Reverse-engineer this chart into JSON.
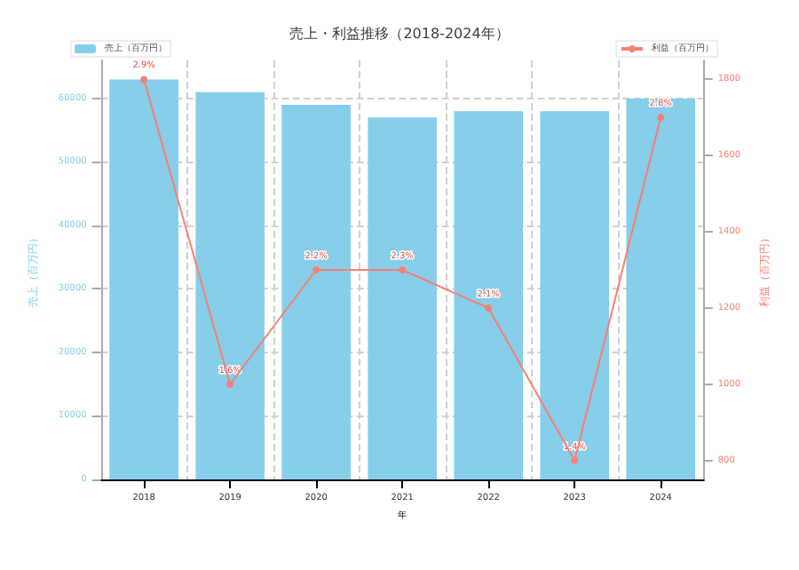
{
  "chart_data": {
    "type": "bar",
    "title": "売上・利益推移（2018-2024年）",
    "xlabel": "年",
    "ylabel": "売上（百万円）",
    "y2label": "利益（百万円）",
    "categories": [
      "2018",
      "2019",
      "2020",
      "2021",
      "2022",
      "2023",
      "2024"
    ],
    "series": [
      {
        "name": "売上（百万円）",
        "type": "bar",
        "color": "#87ceeb",
        "values": [
          63000,
          61000,
          59000,
          57000,
          58000,
          58000,
          60000
        ]
      },
      {
        "name": "利益（百万円）",
        "type": "line",
        "axis": "y2",
        "color": "#fa8072",
        "marker": "circle",
        "values": [
          1800,
          1000,
          1300,
          1300,
          1200,
          800,
          1700
        ]
      }
    ],
    "annotations": [
      "2.9%",
      "1.6%",
      "2.2%",
      "2.3%",
      "2.1%",
      "1.4%",
      "2.8%"
    ],
    "ylim": [
      0,
      66000
    ],
    "yticks": [
      0,
      10000,
      20000,
      30000,
      40000,
      50000,
      60000
    ],
    "y2lim": [
      750,
      1850
    ],
    "y2ticks": [
      800,
      1000,
      1200,
      1400,
      1600,
      1800
    ],
    "grid": true,
    "legend": "top"
  }
}
